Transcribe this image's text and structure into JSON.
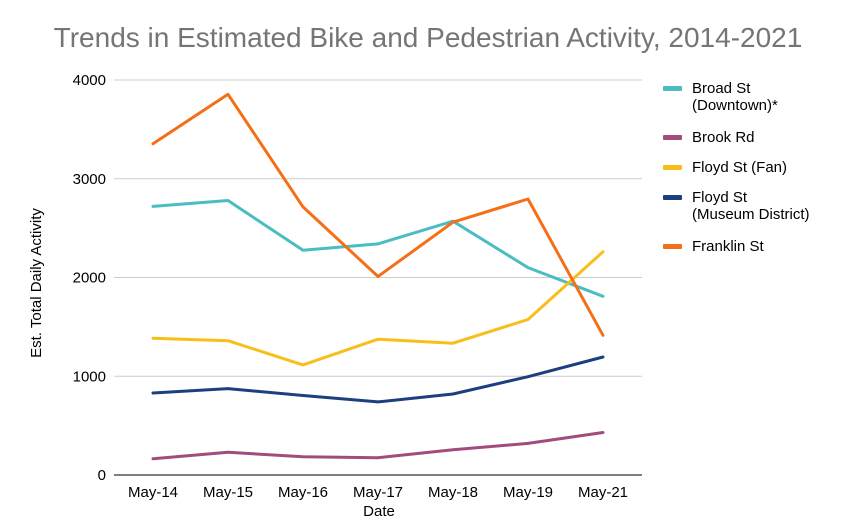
{
  "chart_data": {
    "type": "line",
    "title": "Trends in Estimated Bike and Pedestrian Activity, 2014-2021",
    "xlabel": "Date",
    "ylabel": "Est. Total Daily Activity",
    "ylim": [
      0,
      4000
    ],
    "yticks": [
      "0",
      "1000",
      "2000",
      "3000",
      "4000"
    ],
    "grid": true,
    "legend_position": "right",
    "categories": [
      "May-14",
      "May-15",
      "May-16",
      "May-17",
      "May-18",
      "May-19",
      "May-21"
    ],
    "series": [
      {
        "name": "Broad St (Downtown)*",
        "legend_lines": [
          "Broad St",
          "(Downtown)*"
        ],
        "color": "#4ABDC2",
        "values": [
          2720,
          2780,
          2275,
          2340,
          2570,
          2100,
          1810
        ]
      },
      {
        "name": "Brook Rd",
        "legend_lines": [
          "Brook Rd"
        ],
        "color": "#A24C7D",
        "values": [
          165,
          230,
          185,
          175,
          255,
          320,
          430
        ]
      },
      {
        "name": "Floyd St (Fan)",
        "legend_lines": [
          "Floyd St (Fan)"
        ],
        "color": "#F7BF1A",
        "values": [
          1385,
          1360,
          1115,
          1375,
          1335,
          1575,
          2260
        ]
      },
      {
        "name": "Floyd St (Museum District)",
        "legend_lines": [
          "Floyd St",
          "(Museum District)"
        ],
        "color": "#1C3F7F",
        "values": [
          830,
          875,
          805,
          740,
          820,
          995,
          1195
        ]
      },
      {
        "name": "Franklin St",
        "legend_lines": [
          "Franklin St"
        ],
        "color": "#F46F16",
        "values": [
          3355,
          3855,
          2715,
          2010,
          2560,
          2795,
          1415
        ]
      }
    ]
  }
}
